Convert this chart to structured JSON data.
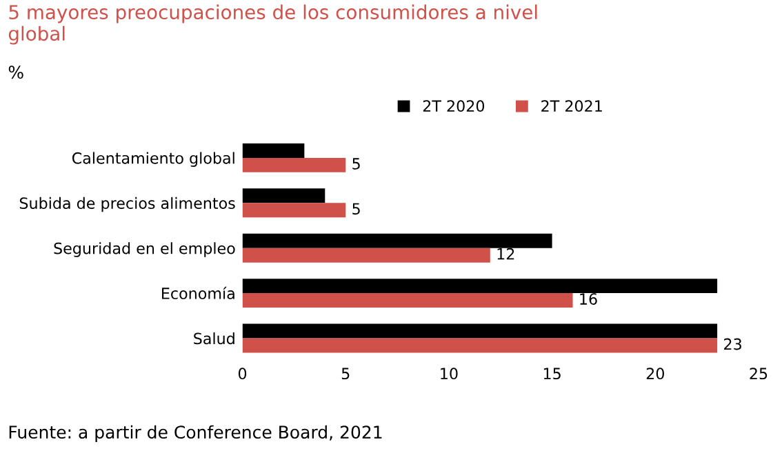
{
  "chart_data": {
    "type": "bar",
    "orientation": "horizontal",
    "title": "5 mayores preocupaciones de los consumidores a nivel\nglobal",
    "subtitle": "%",
    "categories": [
      "Calentamiento global",
      "Subida de precios alimentos",
      "Seguridad en el empleo",
      "Economía",
      "Salud"
    ],
    "series": [
      {
        "name": "2T 2020",
        "color": "#000000",
        "values": [
          3,
          4,
          15,
          23,
          23
        ]
      },
      {
        "name": "2T 2021",
        "color": "#d0504a",
        "values": [
          5,
          5,
          12,
          16,
          23
        ],
        "value_labels": [
          "5",
          "5",
          "12",
          "16",
          "23"
        ]
      }
    ],
    "xlim": [
      0,
      25
    ],
    "xticks": [
      0,
      5,
      10,
      15,
      20,
      25
    ],
    "grid": false,
    "legend": "top",
    "annotations": [
      "Fuente: a partir de Conference Board, 2021"
    ]
  }
}
